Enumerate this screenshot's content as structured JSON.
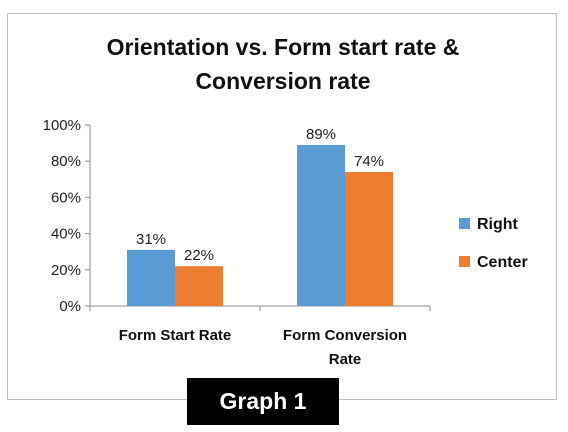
{
  "chart_data": {
    "type": "bar",
    "title_lines": [
      "Orientation vs. Form start rate &",
      "Conversion rate"
    ],
    "categories": [
      [
        "Form Start Rate"
      ],
      [
        "Form Conversion",
        "Rate"
      ]
    ],
    "series": [
      {
        "name": "Right",
        "values": [
          0.31,
          0.89
        ],
        "labels": [
          "31%",
          "89%"
        ],
        "color": "#5b9bd5"
      },
      {
        "name": "Center",
        "values": [
          0.22,
          0.74
        ],
        "labels": [
          "22%",
          "74%"
        ],
        "color": "#ed7d31"
      }
    ],
    "ylim": [
      0,
      1
    ],
    "yticks": [
      "0%",
      "20%",
      "40%",
      "60%",
      "80%",
      "100%"
    ],
    "legend_position": "right",
    "grid": false
  },
  "caption": "Graph 1"
}
